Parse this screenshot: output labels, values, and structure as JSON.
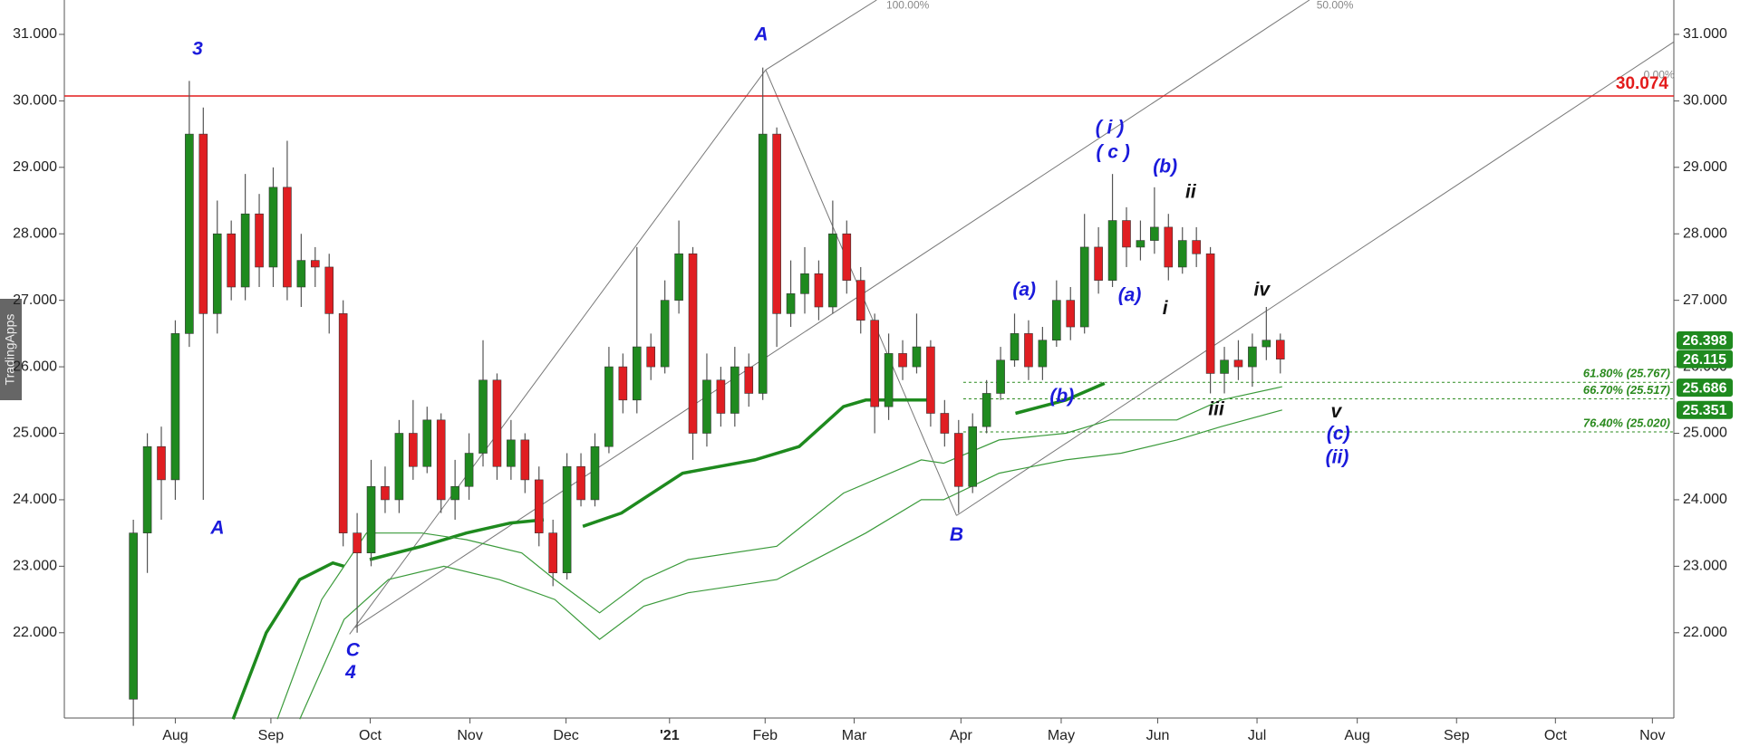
{
  "chart_data": {
    "type": "candlestick",
    "up_color": "#1f8a1f",
    "down_color": "#e01e22",
    "wick_color": "#555555",
    "xlim": [
      -23.8,
      321.4
    ],
    "xticks": [
      {
        "value": 0,
        "label": "Aug"
      },
      {
        "value": 20.5,
        "label": "Sep"
      },
      {
        "value": 41.8,
        "label": "Oct"
      },
      {
        "value": 63.2,
        "label": "Nov"
      },
      {
        "value": 83.8,
        "label": "Dec"
      },
      {
        "value": 106,
        "label": "'21"
      },
      {
        "value": 126.5,
        "label": "Feb"
      },
      {
        "value": 145.6,
        "label": "Mar"
      },
      {
        "value": 168.5,
        "label": "Apr"
      },
      {
        "value": 190,
        "label": "May"
      },
      {
        "value": 210.7,
        "label": "Jun"
      },
      {
        "value": 232,
        "label": "Jul"
      },
      {
        "value": 253.5,
        "label": "Aug"
      },
      {
        "value": 274.8,
        "label": "Sep"
      },
      {
        "value": 296,
        "label": "Oct"
      },
      {
        "value": 316.8,
        "label": "Nov"
      }
    ],
    "ylim": [
      20717,
      31517
    ],
    "yticks": [
      {
        "value": 22000,
        "label": "22.000"
      },
      {
        "value": 23000,
        "label": "23.000"
      },
      {
        "value": 24000,
        "label": "24.000"
      },
      {
        "value": 25000,
        "label": "25.000"
      },
      {
        "value": 26000,
        "label": "26.000"
      },
      {
        "value": 27000,
        "label": "27.000"
      },
      {
        "value": 28000,
        "label": "28.000"
      },
      {
        "value": 29000,
        "label": "29.000"
      },
      {
        "value": 30000,
        "label": "30.000"
      },
      {
        "value": 31000,
        "label": "31.000"
      }
    ],
    "x": [
      -9,
      -6,
      -3,
      0,
      3,
      6,
      9,
      12,
      15,
      18,
      21,
      24,
      27,
      30,
      33,
      36,
      39,
      42,
      45,
      48,
      51,
      54,
      57,
      60,
      63,
      66,
      69,
      72,
      75,
      78,
      81,
      84,
      87,
      90,
      93,
      96,
      99,
      102,
      105,
      108,
      111,
      114,
      117,
      120,
      123,
      126,
      129,
      132,
      135,
      138,
      141,
      144,
      147,
      150,
      153,
      156,
      159,
      162,
      165,
      168,
      171,
      174,
      177,
      180,
      183,
      186,
      189,
      192,
      195,
      198,
      201,
      204,
      207,
      210,
      213,
      216,
      219,
      222,
      225,
      228,
      231,
      234,
      237
    ],
    "open": [
      21000,
      23500,
      24800,
      24300,
      26500,
      29500,
      26800,
      28000,
      27200,
      28300,
      27500,
      28700,
      27200,
      27600,
      27500,
      26800,
      23500,
      23200,
      24200,
      24000,
      25000,
      24500,
      25200,
      24000,
      24200,
      24700,
      25800,
      24500,
      24900,
      24300,
      23500,
      22900,
      24500,
      24000,
      24800,
      26000,
      25500,
      26300,
      26000,
      27000,
      27700,
      25000,
      25800,
      25300,
      26000,
      25600,
      29500,
      26800,
      27100,
      27400,
      26900,
      28000,
      27300,
      26700,
      25400,
      26200,
      26000,
      26300,
      25300,
      25000,
      24200,
      25100,
      25600,
      26100,
      26500,
      26000,
      26400,
      27000,
      26600,
      27800,
      27300,
      28200,
      27800,
      27900,
      28100,
      27500,
      27900,
      27700,
      25900,
      26100,
      26000,
      26300,
      26400
    ],
    "high": [
      23700,
      25000,
      25100,
      26700,
      30300,
      29900,
      28500,
      28200,
      28900,
      28600,
      29000,
      29400,
      28000,
      27800,
      27700,
      27000,
      23800,
      24600,
      24500,
      25200,
      25500,
      25400,
      25300,
      24600,
      25000,
      26400,
      25900,
      25200,
      25000,
      24500,
      23700,
      24700,
      24700,
      25000,
      26300,
      26200,
      27800,
      26500,
      27300,
      28200,
      27800,
      26200,
      26000,
      26300,
      26200,
      30500,
      29600,
      27600,
      27800,
      27600,
      28500,
      28200,
      27500,
      26800,
      26500,
      26400,
      26800,
      26400,
      25500,
      25200,
      25300,
      25800,
      26300,
      26800,
      26700,
      26600,
      27300,
      27200,
      28300,
      28100,
      28900,
      28400,
      28200,
      28700,
      28300,
      28100,
      28100,
      27800,
      26300,
      26400,
      26500,
      26900,
      26500
    ],
    "low": [
      20600,
      22900,
      23700,
      24000,
      26300,
      24000,
      26500,
      27000,
      27000,
      27200,
      27200,
      27000,
      26900,
      27200,
      26500,
      23300,
      22000,
      23000,
      23800,
      23800,
      24300,
      24400,
      23800,
      23700,
      24000,
      24500,
      24300,
      24300,
      24100,
      23300,
      22700,
      22800,
      23900,
      23900,
      24700,
      25300,
      25300,
      25800,
      25900,
      26800,
      24600,
      24800,
      25100,
      25100,
      25400,
      25500,
      26300,
      26600,
      26800,
      26700,
      26800,
      27100,
      26500,
      25000,
      25200,
      25800,
      25900,
      25100,
      24800,
      23800,
      24100,
      25000,
      25500,
      26000,
      25800,
      25800,
      26300,
      26400,
      26500,
      27100,
      27200,
      27500,
      27600,
      27700,
      27300,
      27400,
      27500,
      25600,
      25600,
      25800,
      25700,
      26100,
      25900
    ],
    "close": [
      23500,
      24800,
      24300,
      26500,
      29500,
      26800,
      28000,
      27200,
      28300,
      27500,
      28700,
      27200,
      27600,
      27500,
      26800,
      23500,
      23200,
      24200,
      24000,
      25000,
      24500,
      25200,
      24000,
      24200,
      24700,
      25800,
      24500,
      24900,
      24300,
      23500,
      22900,
      24500,
      24000,
      24800,
      26000,
      25500,
      26300,
      26000,
      27000,
      27700,
      25000,
      25800,
      25300,
      26000,
      25600,
      29500,
      26800,
      27100,
      27400,
      26900,
      28000,
      27300,
      26700,
      25400,
      26200,
      26000,
      26300,
      25300,
      25000,
      24200,
      25100,
      25600,
      26100,
      26500,
      26000,
      26400,
      27000,
      26600,
      27800,
      27300,
      28200,
      27800,
      27900,
      28100,
      27500,
      27900,
      27700,
      25900,
      26100,
      26000,
      26300,
      26400,
      26115
    ],
    "moving_averages": [
      {
        "color": "#1e8a1e",
        "x": [
          12.4,
          19.5,
          26.7,
          33.8,
          36.2,
          39,
          41.7,
          52.9,
          62.4,
          71.9,
          79,
          83,
          87.4,
          95.7,
          108.8,
          124.3,
          133.8,
          143.3,
          148.1,
          162.4,
          170,
          180.2,
          191,
          199.3
        ],
        "values": [
          20700,
          22000,
          22800,
          23050,
          23000,
          null,
          23100,
          23300,
          23500,
          23650,
          23700,
          null,
          23600,
          23800,
          24400,
          24600,
          24800,
          25400,
          25500,
          25500,
          null,
          25300,
          25500,
          25750
        ]
      },
      {
        "color": "#3a9a3a",
        "x": [
          21.9,
          31.4,
          41,
          52.9,
          62.4,
          74.3,
          81.4,
          91,
          100.5,
          110,
          129,
          143.3,
          160,
          164.8,
          176.7,
          191,
          200.5,
          214.8,
          224.3,
          237.4
        ],
        "values": [
          20700,
          22500,
          23500,
          23500,
          23400,
          23200,
          22800,
          22300,
          22800,
          23100,
          23300,
          24100,
          24600,
          24550,
          24900,
          25000,
          25200,
          25200,
          25500,
          25700
        ]
      },
      {
        "color": "#3a9a3a",
        "x": [
          26.7,
          36.2,
          45.7,
          57.6,
          69.5,
          81.4,
          91,
          100.5,
          110,
          129,
          148.1,
          160,
          164.8,
          176.7,
          191,
          202.9,
          214.8,
          224.3,
          237.4
        ],
        "values": [
          20700,
          22200,
          22800,
          23000,
          22800,
          22500,
          21900,
          22400,
          22600,
          22800,
          23500,
          24000,
          24000,
          24400,
          24600,
          24700,
          24900,
          25100,
          25350
        ]
      }
    ],
    "hline": {
      "value": 30074,
      "label": "30.074",
      "color": "#e31b1b"
    },
    "fib_levels": [
      {
        "value": 25767,
        "label": "61.80% (25.767)"
      },
      {
        "value": 25517,
        "label": "66.70% (25.517)"
      },
      {
        "value": 25020,
        "label": "76.40% (25.020)"
      }
    ],
    "fib_color": "#2a8a1e",
    "price_badges": [
      {
        "value": 26398,
        "label": "26.398"
      },
      {
        "value": 26115,
        "label": "26.115"
      },
      {
        "value": 25686,
        "label": "25.686"
      },
      {
        "value": 25351,
        "label": "25.351"
      }
    ],
    "badge_color": "#1f8a1f",
    "drawing_labels": [
      "100.00%",
      "50.00%",
      "0.00%"
    ],
    "annotations": [
      {
        "text": "3",
        "color": "#1a1adb"
      },
      {
        "text": "A",
        "color": "#1a1adb"
      },
      {
        "text": "C",
        "color": "#1a1adb"
      },
      {
        "text": "4",
        "color": "#1a1adb"
      },
      {
        "text": "A",
        "color": "#1a1adb"
      },
      {
        "text": "B",
        "color": "#1a1adb"
      },
      {
        "text": "( i )",
        "color": "#1a1adb"
      },
      {
        "text": "( c )",
        "color": "#1a1adb"
      },
      {
        "text": "(b)",
        "color": "#1a1adb"
      },
      {
        "text": "ii",
        "color": "#111111"
      },
      {
        "text": "(a)",
        "color": "#1a1adb"
      },
      {
        "text": "(a)",
        "color": "#1a1adb"
      },
      {
        "text": "i",
        "color": "#111111"
      },
      {
        "text": "iv",
        "color": "#111111"
      },
      {
        "text": "(b)",
        "color": "#1a1adb"
      },
      {
        "text": "iii",
        "color": "#111111"
      },
      {
        "text": "v",
        "color": "#111111"
      },
      {
        "text": "(c)",
        "color": "#1a1adb"
      },
      {
        "text": "(ii)",
        "color": "#1a1adb"
      }
    ],
    "watermark": "TradingApps"
  }
}
